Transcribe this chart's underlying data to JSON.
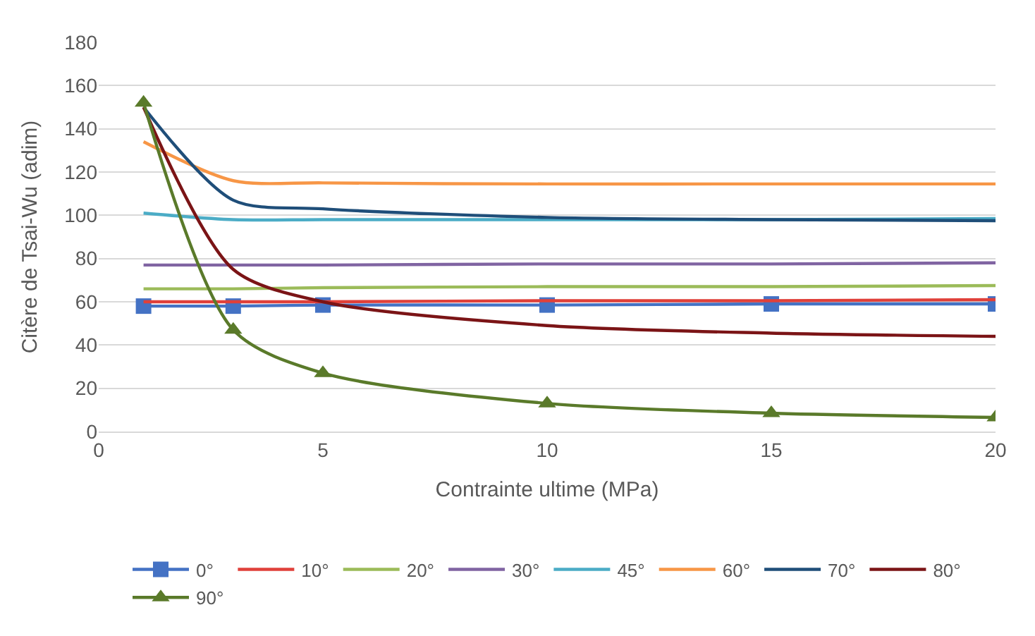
{
  "chart_data": {
    "type": "line",
    "xlabel": "Contrainte ultime (MPa)",
    "ylabel": "Citère de Tsai-Wu (adim)",
    "x": [
      1,
      3,
      5,
      10,
      15,
      20
    ],
    "xlim": [
      0,
      20
    ],
    "xticks": [
      0,
      5,
      10,
      15,
      20
    ],
    "ylim": [
      0,
      180
    ],
    "yticks": [
      0,
      20,
      40,
      60,
      80,
      100,
      120,
      140,
      160,
      180
    ],
    "grid": "y",
    "legend": "bottom",
    "line_style": "solid",
    "series": [
      {
        "name": "0°",
        "color": "#4472c4",
        "marker": "square",
        "values": [
          58,
          58,
          58.5,
          58.5,
          59,
          59
        ]
      },
      {
        "name": "10°",
        "color": "#e0403a",
        "marker": "none",
        "values": [
          60,
          60,
          60,
          60.5,
          60.5,
          61
        ]
      },
      {
        "name": "20°",
        "color": "#9bbb59",
        "marker": "none",
        "values": [
          66,
          66,
          66.5,
          67,
          67,
          67.5
        ]
      },
      {
        "name": "30°",
        "color": "#8064a2",
        "marker": "none",
        "values": [
          77,
          77,
          77,
          77.5,
          77.5,
          78
        ]
      },
      {
        "name": "45°",
        "color": "#4bacc6",
        "marker": "none",
        "values": [
          101,
          98,
          98,
          98,
          98,
          98.5
        ]
      },
      {
        "name": "60°",
        "color": "#f79646",
        "marker": "none",
        "values": [
          134,
          116,
          115,
          114.5,
          114.5,
          114.5
        ]
      },
      {
        "name": "70°",
        "color": "#1f4e79",
        "marker": "none",
        "values": [
          150,
          107,
          103,
          99,
          98,
          97.5
        ]
      },
      {
        "name": "80°",
        "color": "#7b1416",
        "marker": "none",
        "values": [
          150,
          75,
          60,
          49,
          45.5,
          44
        ]
      },
      {
        "name": "90°",
        "color": "#5a7a2a",
        "marker": "triangle",
        "values": [
          152,
          47,
          27,
          13,
          8.5,
          6.5
        ]
      }
    ]
  }
}
